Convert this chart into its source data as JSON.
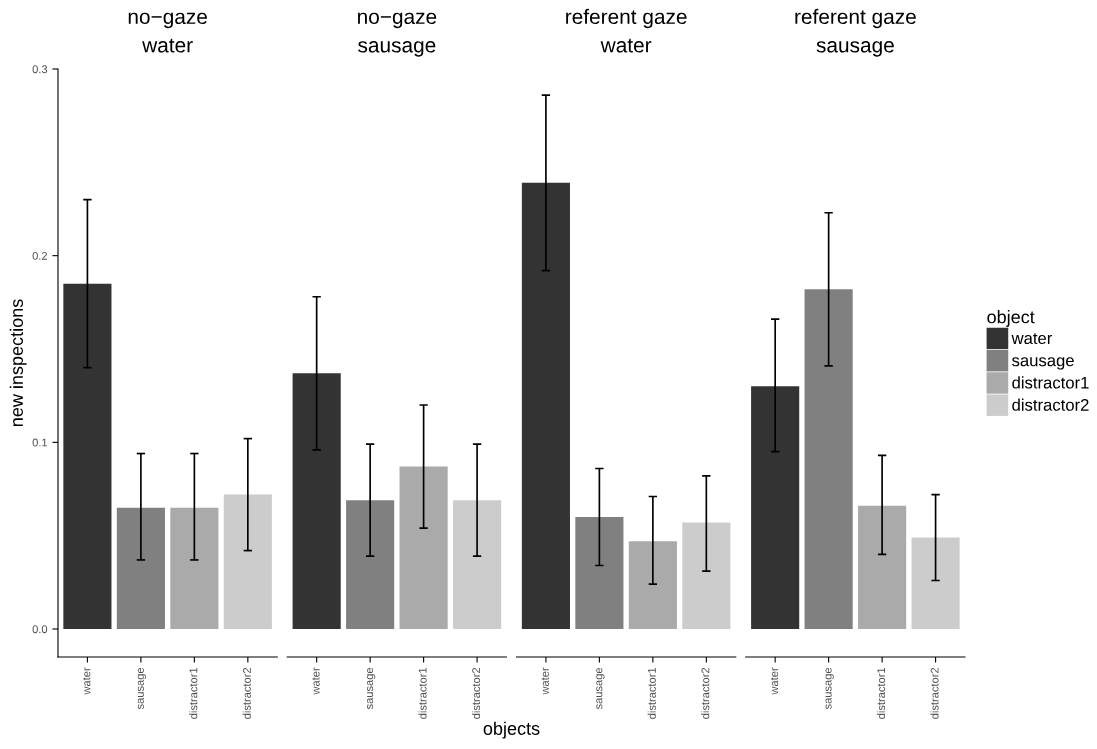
{
  "chart_data": [
    {
      "type": "bar",
      "title": "no−gaze\nwater",
      "ylabel": "new inspections",
      "categories": [
        "water",
        "sausage",
        "distractor1",
        "distractor2"
      ],
      "series": [
        {
          "color": "#333333",
          "values": [
            0.185,
            null,
            null,
            null
          ],
          "errors": [
            [
              0.14,
              0.23
            ],
            null,
            null,
            null
          ]
        },
        {
          "color": "#808080",
          "values": [
            null,
            0.065,
            null,
            null
          ],
          "errors": [
            null,
            [
              0.037,
              0.094
            ],
            null,
            null
          ]
        },
        {
          "color": "#aaaaaa",
          "values": [
            null,
            null,
            0.065,
            null
          ],
          "errors": [
            null,
            null,
            [
              0.037,
              0.094
            ],
            null
          ]
        },
        {
          "color": "#cccccc",
          "values": [
            null,
            null,
            null,
            0.072
          ],
          "errors": [
            null,
            null,
            null,
            [
              0.042,
              0.102
            ]
          ]
        }
      ],
      "ylim": [
        -0.015,
        0.3
      ],
      "yticks": [
        {
          "value": 0,
          "label": "0.0"
        },
        0.1,
        0.2,
        0.3
      ],
      "grid": false,
      "legend": false
    },
    {
      "type": "bar",
      "title": "no−gaze\nsausage",
      "xlabel": "objects",
      "categories": [
        "water",
        "sausage",
        "distractor1",
        "distractor2"
      ],
      "series": [
        {
          "color": "#333333",
          "values": [
            0.137,
            null,
            null,
            null
          ],
          "errors": [
            [
              0.096,
              0.178
            ],
            null,
            null,
            null
          ]
        },
        {
          "color": "#808080",
          "values": [
            null,
            0.069,
            null,
            null
          ],
          "errors": [
            null,
            [
              0.039,
              0.099
            ],
            null,
            null
          ]
        },
        {
          "color": "#aaaaaa",
          "values": [
            null,
            null,
            0.087,
            null
          ],
          "errors": [
            null,
            null,
            [
              0.054,
              0.12
            ],
            null
          ]
        },
        {
          "color": "#cccccc",
          "values": [
            null,
            null,
            null,
            0.069
          ],
          "errors": [
            null,
            null,
            null,
            [
              0.039,
              0.099
            ]
          ]
        }
      ],
      "ylim": [
        -0.015,
        0.3
      ],
      "tick_labels": "x",
      "grid": false,
      "legend": false
    },
    {
      "type": "bar",
      "title": "referent gaze\nwater",
      "categories": [
        "water",
        "sausage",
        "distractor1",
        "distractor2"
      ],
      "series": [
        {
          "color": "#333333",
          "values": [
            0.239,
            null,
            null,
            null
          ],
          "errors": [
            [
              0.192,
              0.286
            ],
            null,
            null,
            null
          ]
        },
        {
          "color": "#808080",
          "values": [
            null,
            0.06,
            null,
            null
          ],
          "errors": [
            null,
            [
              0.034,
              0.086
            ],
            null,
            null
          ]
        },
        {
          "color": "#aaaaaa",
          "values": [
            null,
            null,
            0.047,
            null
          ],
          "errors": [
            null,
            null,
            [
              0.024,
              0.071
            ],
            null
          ]
        },
        {
          "color": "#cccccc",
          "values": [
            null,
            null,
            null,
            0.057
          ],
          "errors": [
            null,
            null,
            null,
            [
              0.031,
              0.082
            ]
          ]
        }
      ],
      "ylim": [
        -0.015,
        0.3
      ],
      "tick_labels": "x",
      "grid": false,
      "legend": false
    },
    {
      "type": "bar",
      "title": "referent gaze\nsausage",
      "legend_title": "object",
      "categories": [
        "water",
        "sausage",
        "distractor1",
        "distractor2"
      ],
      "series": [
        {
          "name": "water",
          "color": "#333333",
          "values": [
            0.13,
            null,
            null,
            null
          ],
          "errors": [
            [
              0.095,
              0.166
            ],
            null,
            null,
            null
          ]
        },
        {
          "name": "sausage",
          "color": "#808080",
          "values": [
            null,
            0.182,
            null,
            null
          ],
          "errors": [
            null,
            [
              0.141,
              0.223
            ],
            null,
            null
          ]
        },
        {
          "name": "distractor1",
          "color": "#aaaaaa",
          "values": [
            null,
            null,
            0.066,
            null
          ],
          "errors": [
            null,
            null,
            [
              0.04,
              0.093
            ],
            null
          ]
        },
        {
          "name": "distractor2",
          "color": "#cccccc",
          "values": [
            null,
            null,
            null,
            0.049
          ],
          "errors": [
            null,
            null,
            null,
            [
              0.026,
              0.072
            ]
          ]
        }
      ],
      "ylim": [
        -0.015,
        0.3
      ],
      "tick_labels": "x",
      "grid": false,
      "legend": "right"
    }
  ]
}
